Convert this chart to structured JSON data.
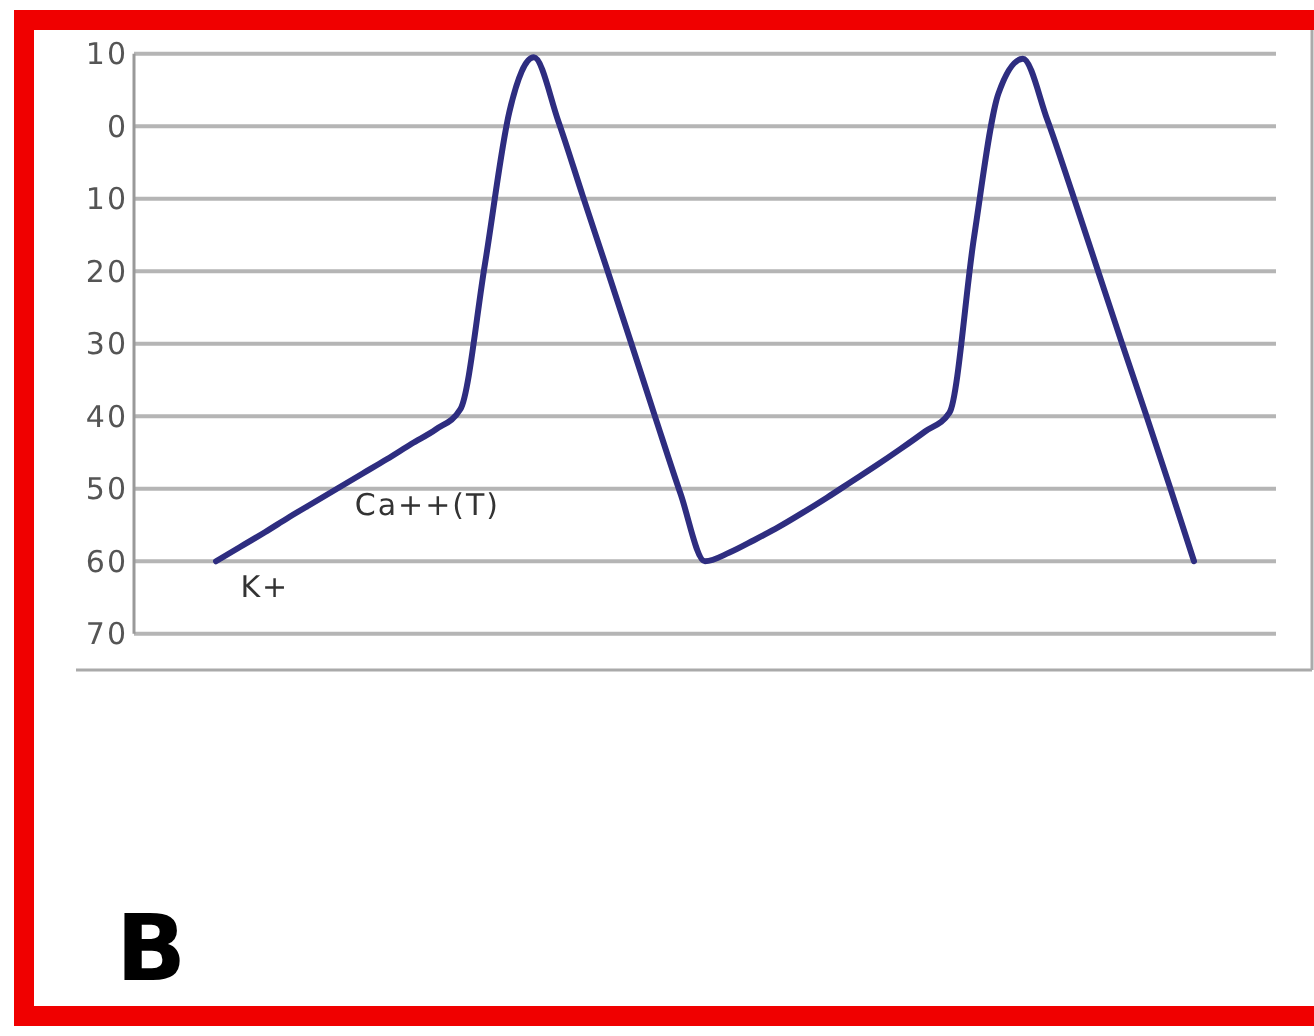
{
  "chart_data": {
    "type": "line",
    "title": "B",
    "categories": [
      null,
      null,
      null,
      null,
      null,
      null,
      null,
      null,
      null,
      null,
      null,
      null,
      null,
      null,
      null,
      null,
      null,
      null,
      null,
      null,
      null,
      null,
      null,
      null,
      null,
      null,
      null,
      null,
      null,
      null,
      null,
      null,
      null,
      null,
      null,
      null,
      null,
      null,
      null,
      null,
      null
    ],
    "series": [
      {
        "color": "#2e2d80",
        "values": [
          -60,
          -58,
          -56,
          -53.9,
          -51.9,
          -49.9,
          -47.9,
          -45.9,
          -43.8,
          -41.8,
          -39,
          -19,
          2,
          9.5,
          0.7,
          -9.6,
          -19.8,
          -30.1,
          -40.5,
          -50.7,
          -60,
          -58.8,
          -57.1,
          -55.3,
          -53.3,
          -51.2,
          -49,
          -46.8,
          -44.5,
          -42.1,
          -39.5,
          -15.4,
          4.5,
          9.3,
          0.9,
          -9,
          -19.2,
          -29.4,
          -39.4,
          -49.6,
          -60
        ]
      }
    ],
    "ylim": [
      -75,
      10
    ],
    "yticks": [
      10,
      0,
      {
        "value": -10,
        "label": "10"
      },
      {
        "value": -20,
        "label": "20"
      },
      {
        "value": -30,
        "label": "30"
      },
      {
        "value": -40,
        "label": "40"
      },
      {
        "value": -50,
        "label": "50"
      },
      {
        "value": -60,
        "label": "60"
      },
      {
        "value": -70,
        "label": "70"
      }
    ],
    "grid": "y",
    "tick_labels": "y",
    "marker": "none",
    "line_style": "solid",
    "annotations": [
      "K+",
      "Ca++(T)"
    ]
  }
}
